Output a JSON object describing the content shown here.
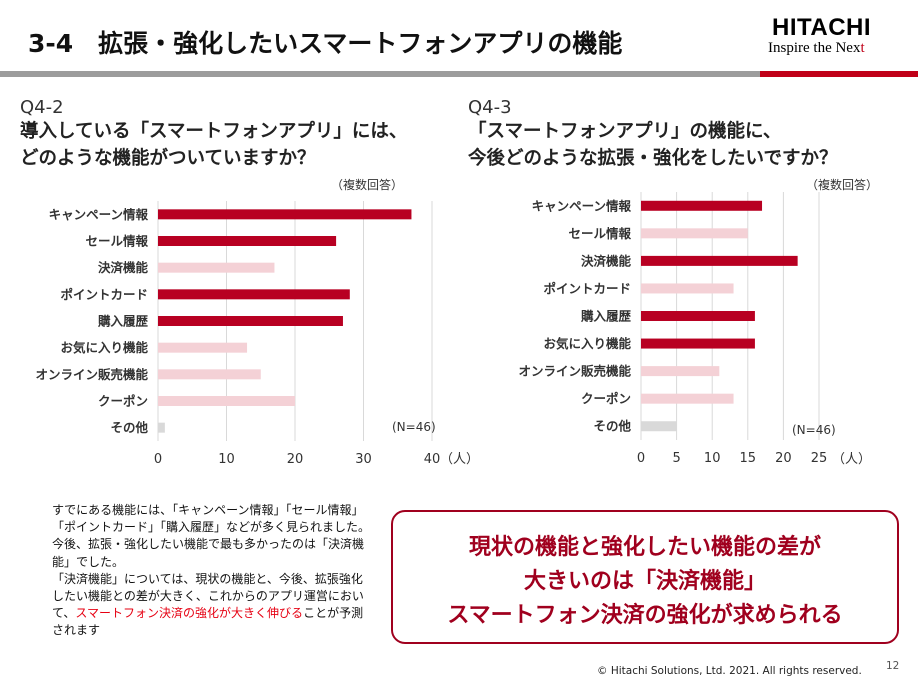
{
  "header": {
    "title": "3-4　拡張・強化したいスマートフォンアプリの機能",
    "logo_main": "HITACHI",
    "logo_sub": "Inspire the Nex",
    "logo_arrow": "t"
  },
  "colors": {
    "accent": "#c00018",
    "bar_highlight": "#b80022",
    "bar_muted": "#f4d1d6",
    "bar_other": "#d9d9d9"
  },
  "left_question": {
    "code": "Q4-2",
    "line1": "導入している「スマートフォンアプリ」には、",
    "line2": "どのような機能がついていますか？",
    "note": "（複数回答）",
    "n_label": "(N=46)",
    "unit": "（人）"
  },
  "right_question": {
    "code": "Q4-3",
    "line1": "「スマートフォンアプリ」の機能に、",
    "line2": "今後どのような拡張・強化をしたいですか？",
    "note": "（複数回答）",
    "n_label": "(N=46)",
    "unit": "（人）"
  },
  "chart_data": [
    {
      "type": "bar",
      "orientation": "horizontal",
      "title": "導入している「スマートフォンアプリ」には、どのような機能がついていますか？",
      "categories": [
        "キャンペーン情報",
        "セール情報",
        "決済機能",
        "ポイントカード",
        "購入履歴",
        "お気に入り機能",
        "オンライン販売機能",
        "クーポン",
        "その他"
      ],
      "values": [
        37,
        26,
        17,
        28,
        27,
        13,
        15,
        20,
        1
      ],
      "highlight": [
        true,
        true,
        false,
        true,
        true,
        false,
        false,
        false,
        false
      ],
      "xlim": [
        0,
        40
      ],
      "ticks": [
        0,
        10,
        20,
        30,
        40
      ],
      "xlabel": "（人）",
      "grid": true
    },
    {
      "type": "bar",
      "orientation": "horizontal",
      "title": "「スマートフォンアプリ」の機能に、今後どのような拡張・強化をしたいですか？",
      "categories": [
        "キャンペーン情報",
        "セール情報",
        "決済機能",
        "ポイントカード",
        "購入履歴",
        "お気に入り機能",
        "オンライン販売機能",
        "クーポン",
        "その他"
      ],
      "values": [
        17,
        15,
        22,
        13,
        16,
        16,
        11,
        13,
        5
      ],
      "highlight": [
        true,
        false,
        true,
        false,
        true,
        true,
        false,
        false,
        false
      ],
      "xlim": [
        0,
        25
      ],
      "ticks": [
        0,
        5,
        10,
        15,
        20,
        25
      ],
      "xlabel": "（人）",
      "grid": true
    }
  ],
  "summary": {
    "text1": "すでにある機能には、「キャンペーン情報」「セール情報」「ポイントカード」「購入履歴」などが多く見られました。今後、拡張・強化したい機能で最も多かったのは「決済機能」でした。",
    "text2": "「決済機能」については、現状の機能と、今後、拡張強化したい機能との差が大きく、これからのアプリ運営において、",
    "highlight": "スマートフォン決済の強化が大きく伸びる",
    "text3": "ことが予測されます"
  },
  "callout": {
    "line1": "現状の機能と強化したい機能の差が",
    "line2": "大きいのは「決済機能」",
    "line3": "スマートフォン決済の強化が求められる"
  },
  "footer": {
    "copyright": "© Hitachi Solutions, Ltd. 2021. All rights reserved.",
    "page_number": "12"
  }
}
